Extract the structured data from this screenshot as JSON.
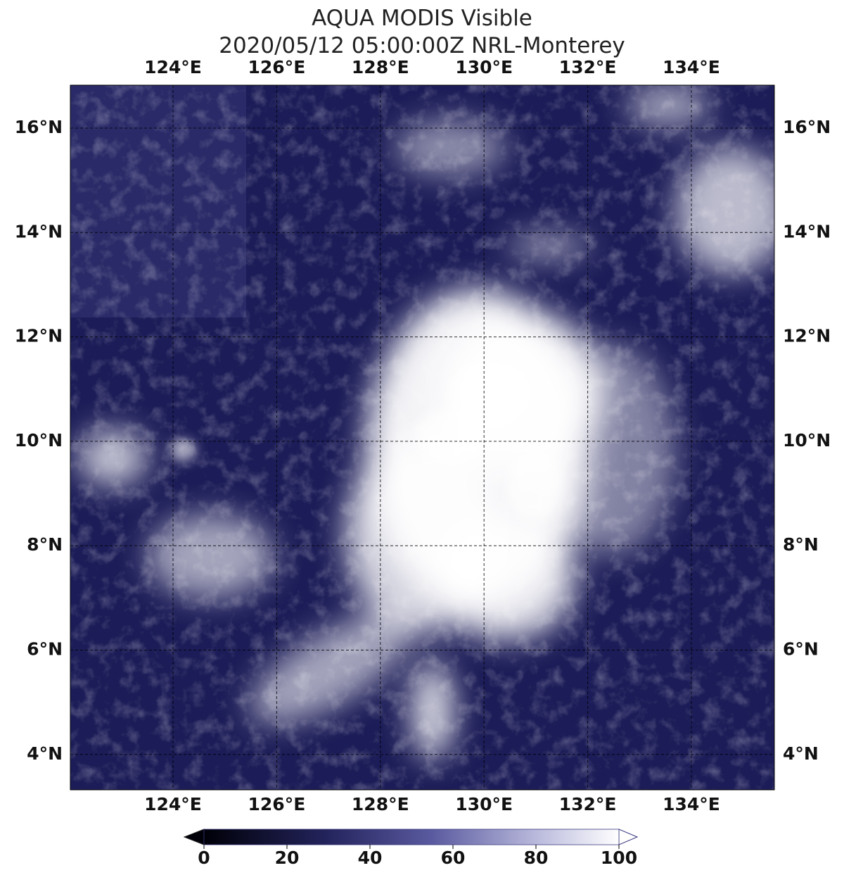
{
  "title": [
    "AQUA MODIS Visible",
    "2020/05/12 05:00:00Z NRL-Monterey"
  ],
  "map": {
    "lon_labels": [
      "124°E",
      "126°E",
      "128°E",
      "130°E",
      "132°E",
      "134°E"
    ],
    "lat_labels": [
      "16°N",
      "14°N",
      "12°N",
      "10°N",
      "8°N",
      "6°N",
      "4°N"
    ]
  },
  "colorbar": {
    "lim": [
      0,
      100
    ],
    "ticks": [
      0,
      20,
      40,
      60,
      80,
      100
    ]
  }
}
